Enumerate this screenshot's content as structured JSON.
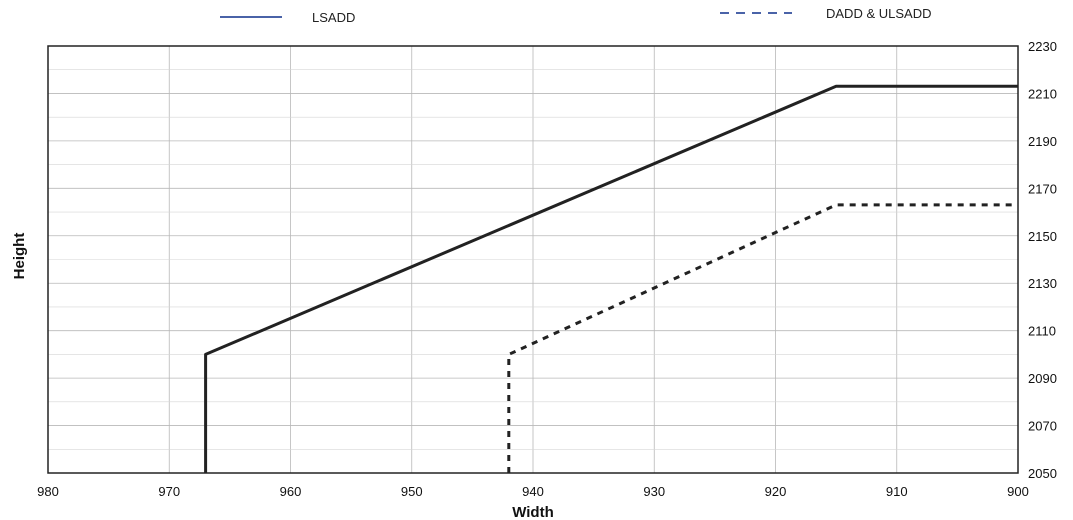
{
  "chart_data": {
    "type": "line",
    "xlabel": "Width",
    "ylabel": "Height",
    "xlim": [
      980,
      900
    ],
    "x_reversed": true,
    "ylim": [
      2050,
      2230
    ],
    "y_axis_side": "right",
    "x_ticks": [
      "980",
      "970",
      "960",
      "950",
      "940",
      "930",
      "920",
      "910",
      "900"
    ],
    "y_ticks": [
      "2050",
      "2070",
      "2090",
      "2110",
      "2130",
      "2150",
      "2170",
      "2190",
      "2210",
      "2230"
    ],
    "grid": true,
    "legend_position": "top",
    "series": [
      {
        "name": "LSADD",
        "style": "solid",
        "color": "#222222",
        "legend_color": "#4a63a8",
        "points": [
          [
            967,
            2050
          ],
          [
            967,
            2100
          ],
          [
            915,
            2213
          ],
          [
            900,
            2213
          ]
        ]
      },
      {
        "name": "DADD & ULSADD",
        "style": "dashed",
        "color": "#222222",
        "legend_color": "#4a63a8",
        "points": [
          [
            942,
            2050
          ],
          [
            942,
            2100
          ],
          [
            915,
            2163
          ],
          [
            900,
            2163
          ]
        ]
      }
    ]
  }
}
